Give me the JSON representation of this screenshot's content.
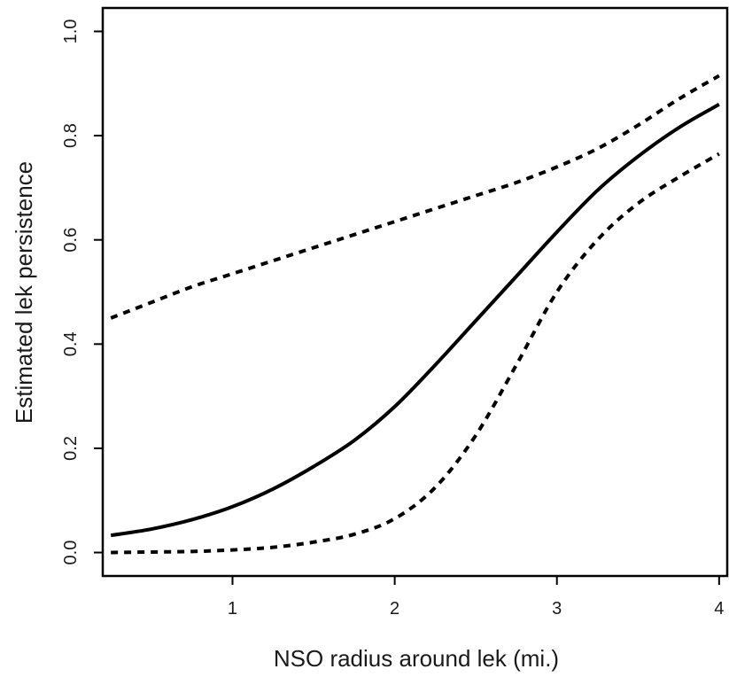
{
  "chart_data": {
    "type": "line",
    "xlabel": "NSO radius around lek (mi.)",
    "ylabel": "Estimated lek persistence",
    "xlim": [
      0.2,
      4.05
    ],
    "ylim": [
      -0.045,
      1.045
    ],
    "x_ticks": [
      1,
      2,
      3,
      4
    ],
    "y_ticks": [
      0.0,
      0.2,
      0.4,
      0.6,
      0.8,
      1.0
    ],
    "x_tick_labels": [
      "1",
      "2",
      "3",
      "4"
    ],
    "y_tick_labels": [
      "0.0",
      "0.2",
      "0.4",
      "0.6",
      "0.8",
      "1.0"
    ],
    "grid": false,
    "series": [
      {
        "style": "solid",
        "x": [
          0.25,
          0.5,
          0.75,
          1.0,
          1.25,
          1.5,
          1.75,
          2.0,
          2.25,
          2.5,
          2.75,
          3.0,
          3.25,
          3.5,
          3.75,
          4.0
        ],
        "y": [
          0.033,
          0.045,
          0.063,
          0.088,
          0.122,
          0.165,
          0.215,
          0.28,
          0.36,
          0.445,
          0.53,
          0.615,
          0.695,
          0.76,
          0.815,
          0.86
        ]
      },
      {
        "style": "dotted",
        "x": [
          0.25,
          0.5,
          0.75,
          1.0,
          1.25,
          1.5,
          1.75,
          2.0,
          2.25,
          2.5,
          2.75,
          3.0,
          3.25,
          3.5,
          3.75,
          4.0
        ],
        "y": [
          0.45,
          0.48,
          0.51,
          0.535,
          0.56,
          0.585,
          0.61,
          0.635,
          0.66,
          0.685,
          0.71,
          0.74,
          0.775,
          0.82,
          0.87,
          0.915
        ]
      },
      {
        "style": "dotted",
        "x": [
          0.25,
          0.5,
          0.75,
          1.0,
          1.25,
          1.5,
          1.75,
          2.0,
          2.25,
          2.5,
          2.75,
          3.0,
          3.25,
          3.5,
          3.75,
          4.0
        ],
        "y": [
          0.0,
          0.001,
          0.002,
          0.005,
          0.01,
          0.02,
          0.035,
          0.065,
          0.125,
          0.225,
          0.36,
          0.5,
          0.6,
          0.67,
          0.72,
          0.765
        ]
      }
    ]
  }
}
